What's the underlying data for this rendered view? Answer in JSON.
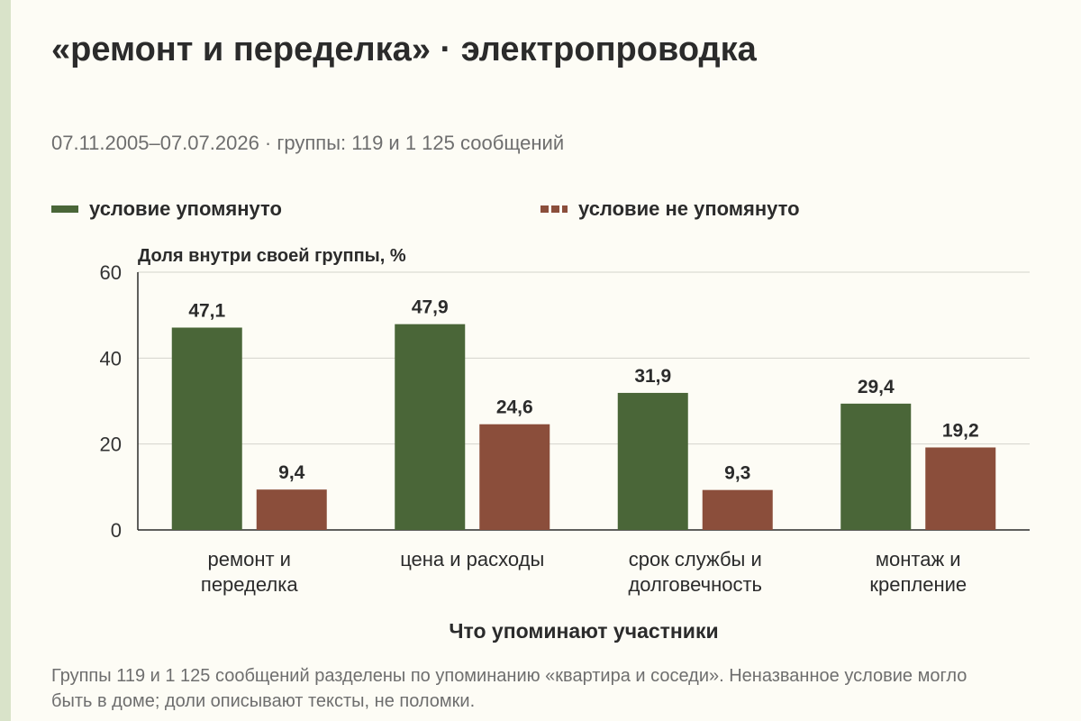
{
  "title": "«ремонт и переделка» · электропроводка",
  "subtitle": "07.11.2005–07.07.2026 · группы: 119 и 1 125 сообщений",
  "legend": [
    {
      "label": "условие упомянуто",
      "color": "#4a6638"
    },
    {
      "label": "условие не упомянуто",
      "color": "#8b4e3b"
    }
  ],
  "footnote": "Группы 119 и 1 125 сообщений разделены по упоминанию «квартира и соседи». Неназванное условие могло быть в доме; доли описывают тексты, не поломки.",
  "chart_data": {
    "type": "bar",
    "ylabel": "Доля внутри своей группы, %",
    "xlabel": "Что упоминают участники",
    "ylim": [
      0,
      60
    ],
    "yticks": [
      0,
      20,
      40,
      60
    ],
    "grid": true,
    "legend_position": "top",
    "categories": [
      [
        "ремонт и",
        "переделка"
      ],
      [
        "цена и расходы"
      ],
      [
        "срок службы и",
        "долговечность"
      ],
      [
        "монтаж и",
        "крепление"
      ]
    ],
    "series": [
      {
        "name": "условие упомянуто",
        "color": "#4a6638",
        "values": [
          47.1,
          47.9,
          31.9,
          29.4
        ],
        "labels": [
          "47,1",
          "47,9",
          "31,9",
          "29,4"
        ]
      },
      {
        "name": "условие не упомянуто",
        "color": "#8b4e3b",
        "values": [
          9.4,
          24.6,
          9.3,
          19.2
        ],
        "labels": [
          "9,4",
          "24,6",
          "9,3",
          "19,2"
        ]
      }
    ]
  }
}
